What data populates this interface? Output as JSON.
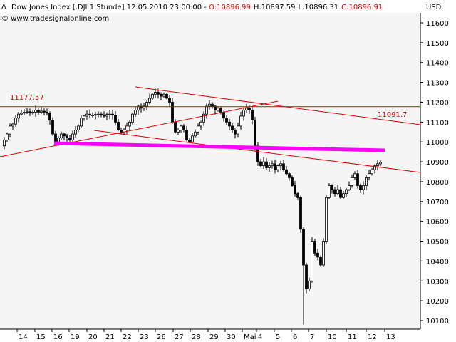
{
  "header": {
    "left_text": "Dow Jones Index [.DJI  1 Stunde] 12.05.2010 23:00:00 - ",
    "o": "O:10896.99",
    "h": "H:10897.59",
    "l": "L:10896.31",
    "c": "C:10896.91",
    "currency": "USD",
    "copyright": "© www.tradesignalonline.com"
  },
  "colors": {
    "background": "#ffffff",
    "plot_background": "#f5f5f5",
    "candle": "#000000",
    "trendline": "#e00000",
    "support_line": "#ff00ff",
    "header_red": "#e00000"
  },
  "annotations": {
    "horizontal_label": "11177.57",
    "channel_label": "11091.7"
  },
  "chart_data": {
    "type": "candlestick",
    "title": "Dow Jones Index [.DJI  1 Stunde]",
    "y_axis_label": "USD",
    "ylim": [
      10070,
      11690
    ],
    "y_ticks": [
      "11600",
      "11500",
      "11400",
      "11300",
      "11200",
      "11100",
      "11000",
      "10900",
      "10800",
      "10700",
      "10600",
      "10500",
      "10400",
      "10300",
      "10200",
      "10100"
    ],
    "x_tick_labels": [
      "14",
      "15",
      "16",
      "19",
      "20",
      "21",
      "22",
      "23",
      "26",
      "27",
      "28",
      "29",
      "30",
      "Mai",
      "4",
      "5",
      "6",
      "7",
      "10",
      "11",
      "12",
      "13"
    ],
    "hourly_close_path": [
      [
        0,
        10980
      ],
      [
        4,
        11010
      ],
      [
        8,
        11040
      ],
      [
        12,
        11080
      ],
      [
        16,
        11090
      ],
      [
        20,
        11120
      ],
      [
        24,
        11140
      ],
      [
        28,
        11145
      ],
      [
        32,
        11150
      ],
      [
        36,
        11152
      ],
      [
        40,
        11145
      ],
      [
        44,
        11150
      ],
      [
        48,
        11160
      ],
      [
        52,
        11150
      ],
      [
        56,
        11155
      ],
      [
        60,
        11150
      ],
      [
        64,
        11145
      ],
      [
        68,
        11110
      ],
      [
        72,
        11040
      ],
      [
        76,
        11000
      ],
      [
        80,
        11020
      ],
      [
        84,
        11040
      ],
      [
        88,
        11030
      ],
      [
        92,
        11020
      ],
      [
        96,
        11010
      ],
      [
        100,
        11040
      ],
      [
        104,
        11060
      ],
      [
        108,
        11080
      ],
      [
        112,
        11120
      ],
      [
        116,
        11130
      ],
      [
        120,
        11140
      ],
      [
        124,
        11135
      ],
      [
        128,
        11135
      ],
      [
        132,
        11138
      ],
      [
        136,
        11140
      ],
      [
        140,
        11135
      ],
      [
        144,
        11130
      ],
      [
        148,
        11138
      ],
      [
        152,
        11140
      ],
      [
        156,
        11135
      ],
      [
        160,
        11100
      ],
      [
        164,
        11060
      ],
      [
        168,
        11050
      ],
      [
        172,
        11060
      ],
      [
        176,
        11080
      ],
      [
        180,
        11100
      ],
      [
        184,
        11140
      ],
      [
        188,
        11160
      ],
      [
        192,
        11180
      ],
      [
        196,
        11170
      ],
      [
        200,
        11180
      ],
      [
        204,
        11200
      ],
      [
        208,
        11220
      ],
      [
        212,
        11240
      ],
      [
        216,
        11250
      ],
      [
        220,
        11240
      ],
      [
        224,
        11230
      ],
      [
        228,
        11240
      ],
      [
        232,
        11220
      ],
      [
        236,
        11200
      ],
      [
        240,
        11100
      ],
      [
        244,
        11050
      ],
      [
        248,
        11060
      ],
      [
        252,
        11080
      ],
      [
        256,
        11060
      ],
      [
        260,
        11010
      ],
      [
        264,
        11000
      ],
      [
        268,
        11030
      ],
      [
        272,
        11050
      ],
      [
        276,
        11080
      ],
      [
        280,
        11100
      ],
      [
        284,
        11140
      ],
      [
        288,
        11180
      ],
      [
        292,
        11190
      ],
      [
        296,
        11180
      ],
      [
        300,
        11160
      ],
      [
        304,
        11170
      ],
      [
        308,
        11150
      ],
      [
        312,
        11120
      ],
      [
        316,
        11100
      ],
      [
        320,
        11080
      ],
      [
        324,
        11060
      ],
      [
        328,
        11040
      ],
      [
        332,
        11080
      ],
      [
        336,
        11130
      ],
      [
        340,
        11160
      ],
      [
        344,
        11170
      ],
      [
        348,
        11160
      ],
      [
        352,
        11110
      ],
      [
        356,
        10980
      ],
      [
        360,
        10900
      ],
      [
        364,
        10880
      ],
      [
        368,
        10900
      ],
      [
        372,
        10870
      ],
      [
        376,
        10880
      ],
      [
        380,
        10890
      ],
      [
        384,
        10860
      ],
      [
        388,
        10880
      ],
      [
        392,
        10890
      ],
      [
        396,
        10860
      ],
      [
        400,
        10840
      ],
      [
        404,
        10820
      ],
      [
        408,
        10780
      ],
      [
        412,
        10740
      ],
      [
        416,
        10720
      ],
      [
        420,
        10560
      ],
      [
        424,
        10380
      ],
      [
        428,
        10260
      ],
      [
        432,
        10300
      ],
      [
        436,
        10500
      ],
      [
        440,
        10440
      ],
      [
        444,
        10420
      ],
      [
        448,
        10380
      ],
      [
        452,
        10500
      ],
      [
        456,
        10720
      ],
      [
        460,
        10780
      ],
      [
        464,
        10760
      ],
      [
        468,
        10740
      ],
      [
        472,
        10760
      ],
      [
        476,
        10720
      ],
      [
        480,
        10740
      ],
      [
        484,
        10760
      ],
      [
        488,
        10780
      ],
      [
        492,
        10820
      ],
      [
        496,
        10840
      ],
      [
        500,
        10780
      ],
      [
        504,
        10760
      ],
      [
        508,
        10780
      ],
      [
        512,
        10820
      ],
      [
        516,
        10840
      ],
      [
        520,
        10860
      ],
      [
        524,
        10880
      ],
      [
        528,
        10890
      ],
      [
        532,
        10897
      ]
    ],
    "lines": [
      {
        "kind": "horizontal",
        "value": 11177.57,
        "label": "11177.57"
      },
      {
        "kind": "channel_upper",
        "label": "11091.7"
      },
      {
        "kind": "channel_lower"
      },
      {
        "kind": "rising_trendline"
      },
      {
        "kind": "support",
        "value": 10940
      }
    ]
  }
}
